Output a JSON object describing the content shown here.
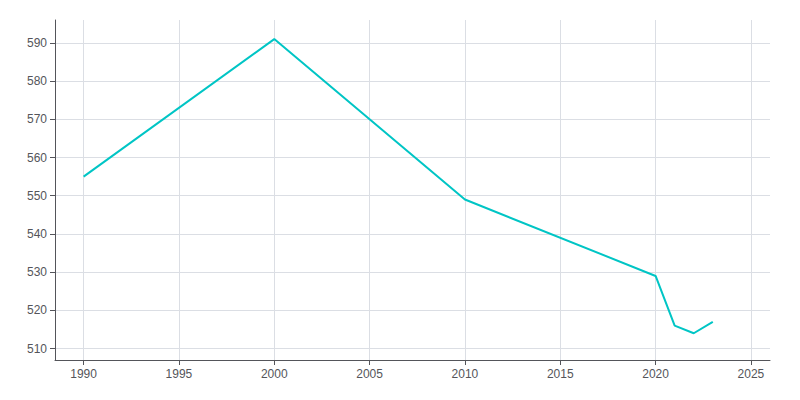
{
  "chart_data": {
    "type": "line",
    "x": [
      1990,
      2000,
      2010,
      2020,
      2021,
      2022,
      2023
    ],
    "values": [
      555,
      591,
      549,
      529,
      516,
      514,
      517
    ],
    "color": "#00C5C5",
    "xlim": [
      1988.5,
      2026
    ],
    "ylim": [
      507,
      596
    ],
    "xticks": [
      1990,
      1995,
      2000,
      2005,
      2010,
      2015,
      2020,
      2025
    ],
    "yticks": [
      510,
      520,
      530,
      540,
      550,
      560,
      570,
      580,
      590
    ],
    "grid": true
  }
}
